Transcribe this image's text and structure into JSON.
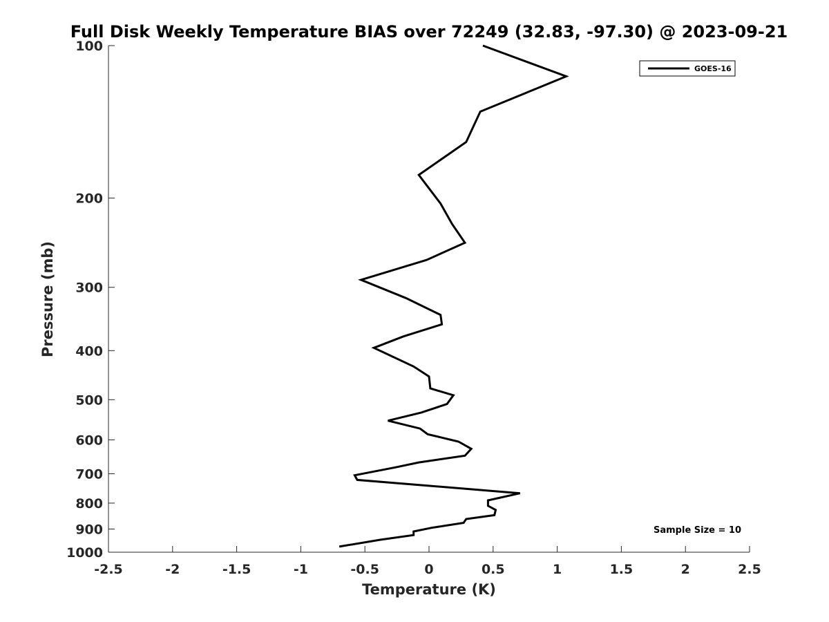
{
  "chart_data": {
    "type": "line",
    "title": "Full Disk Weekly Temperature BIAS over 72249 (32.83, -97.30) @ 2023-09-21",
    "xlabel": "Temperature (K)",
    "ylabel": "Pressure (mb)",
    "xlim": [
      -2.5,
      2.5
    ],
    "ylim": [
      100,
      1000
    ],
    "y_scale": "log",
    "y_reversed": true,
    "grid": false,
    "x_ticks": [
      -2.5,
      -2,
      -1.5,
      -1,
      -0.5,
      0,
      0.5,
      1,
      1.5,
      2,
      2.5
    ],
    "x_tick_labels": [
      "-2.5",
      "-2",
      "-1.5",
      "-1",
      "-0.5",
      "0",
      "0.5",
      "1",
      "1.5",
      "2",
      "2.5"
    ],
    "y_ticks": [
      100,
      200,
      300,
      400,
      500,
      600,
      700,
      800,
      900,
      1000
    ],
    "y_tick_labels": [
      "100",
      "200",
      "300",
      "400",
      "500",
      "600",
      "700",
      "800",
      "900",
      "1000"
    ],
    "legend": {
      "placement": "top-right",
      "entries": [
        "GOES-16"
      ]
    },
    "annotations": [
      {
        "text": "Sample Size = 10",
        "placement": "bottom-right"
      }
    ],
    "series": [
      {
        "name": "GOES-16",
        "color": "#000000",
        "points": [
          {
            "x": 0.42,
            "y": 100
          },
          {
            "x": 1.07,
            "y": 115
          },
          {
            "x": 0.4,
            "y": 135
          },
          {
            "x": 0.29,
            "y": 155
          },
          {
            "x": -0.08,
            "y": 180
          },
          {
            "x": 0.09,
            "y": 205
          },
          {
            "x": 0.18,
            "y": 225
          },
          {
            "x": 0.28,
            "y": 245
          },
          {
            "x": -0.02,
            "y": 265
          },
          {
            "x": -0.53,
            "y": 290
          },
          {
            "x": -0.18,
            "y": 315
          },
          {
            "x": 0.09,
            "y": 340
          },
          {
            "x": 0.1,
            "y": 355
          },
          {
            "x": -0.2,
            "y": 375
          },
          {
            "x": -0.43,
            "y": 395
          },
          {
            "x": -0.12,
            "y": 430
          },
          {
            "x": 0.0,
            "y": 450
          },
          {
            "x": 0.01,
            "y": 475
          },
          {
            "x": 0.19,
            "y": 490
          },
          {
            "x": 0.14,
            "y": 510
          },
          {
            "x": -0.06,
            "y": 530
          },
          {
            "x": -0.32,
            "y": 550
          },
          {
            "x": -0.07,
            "y": 570
          },
          {
            "x": -0.01,
            "y": 585
          },
          {
            "x": 0.23,
            "y": 605
          },
          {
            "x": 0.33,
            "y": 625
          },
          {
            "x": 0.28,
            "y": 645
          },
          {
            "x": -0.08,
            "y": 665
          },
          {
            "x": -0.26,
            "y": 680
          },
          {
            "x": -0.58,
            "y": 705
          },
          {
            "x": -0.56,
            "y": 720
          },
          {
            "x": 0.71,
            "y": 765
          },
          {
            "x": 0.46,
            "y": 790
          },
          {
            "x": 0.46,
            "y": 810
          },
          {
            "x": 0.52,
            "y": 825
          },
          {
            "x": 0.51,
            "y": 845
          },
          {
            "x": 0.29,
            "y": 860
          },
          {
            "x": 0.27,
            "y": 875
          },
          {
            "x": 0.02,
            "y": 895
          },
          {
            "x": -0.12,
            "y": 910
          },
          {
            "x": -0.12,
            "y": 925
          },
          {
            "x": -0.38,
            "y": 945
          },
          {
            "x": -0.7,
            "y": 975
          }
        ]
      }
    ]
  }
}
